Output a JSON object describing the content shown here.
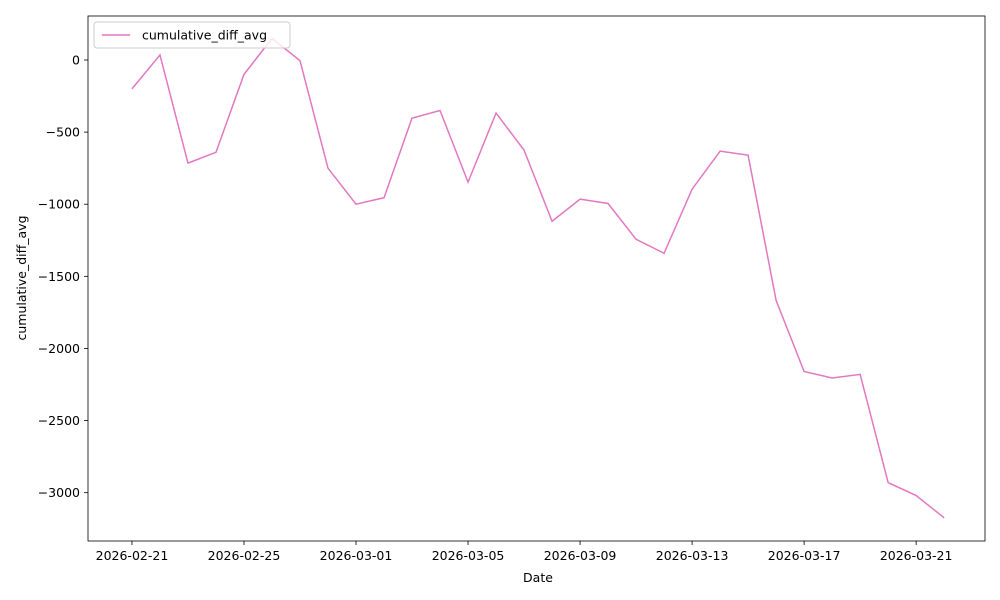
{
  "chart_data": {
    "type": "line",
    "xlabel": "Date",
    "ylabel": "cumulative_diff_avg",
    "legend": "upper left",
    "x": [
      "2026-02-21",
      "2026-02-22",
      "2026-02-23",
      "2026-02-24",
      "2026-02-25",
      "2026-02-26",
      "2026-02-27",
      "2026-02-28",
      "2026-03-01",
      "2026-03-02",
      "2026-03-03",
      "2026-03-04",
      "2026-03-05",
      "2026-03-06",
      "2026-03-07",
      "2026-03-08",
      "2026-03-09",
      "2026-03-10",
      "2026-03-11",
      "2026-03-12",
      "2026-03-13",
      "2026-03-14",
      "2026-03-15",
      "2026-03-16",
      "2026-03-17",
      "2026-03-18",
      "2026-03-19",
      "2026-03-20",
      "2026-03-21",
      "2026-03-22"
    ],
    "series": [
      {
        "name": "cumulative_diff_avg",
        "color": "#e377c2",
        "values": [
          -200,
          35,
          -715,
          -640,
          -100,
          150,
          -5,
          -750,
          -1000,
          -955,
          -403,
          -350,
          -847,
          -368,
          -625,
          -1118,
          -965,
          -995,
          -1243,
          -1340,
          -896,
          -632,
          -660,
          -1667,
          -2160,
          -2205,
          -2180,
          -2930,
          -3020,
          -3174
        ]
      }
    ],
    "xlim": [
      "2026-02-19T10:20",
      "2026-03-23T11:00"
    ],
    "xticks": [
      "2026-02-21",
      "2026-02-25",
      "2026-03-01",
      "2026-03-05",
      "2026-03-09",
      "2026-03-13",
      "2026-03-17",
      "2026-03-21"
    ],
    "ylim": [
      -3335,
      305
    ],
    "yticks": [
      {
        "value": -3000,
        "label": "−3000"
      },
      {
        "value": -2500,
        "label": "−2500"
      },
      {
        "value": -2000,
        "label": "−2000"
      },
      {
        "value": -1500,
        "label": "−1500"
      },
      {
        "value": -1000,
        "label": "−1000"
      },
      {
        "value": -500,
        "label": "−500"
      },
      0
    ]
  }
}
